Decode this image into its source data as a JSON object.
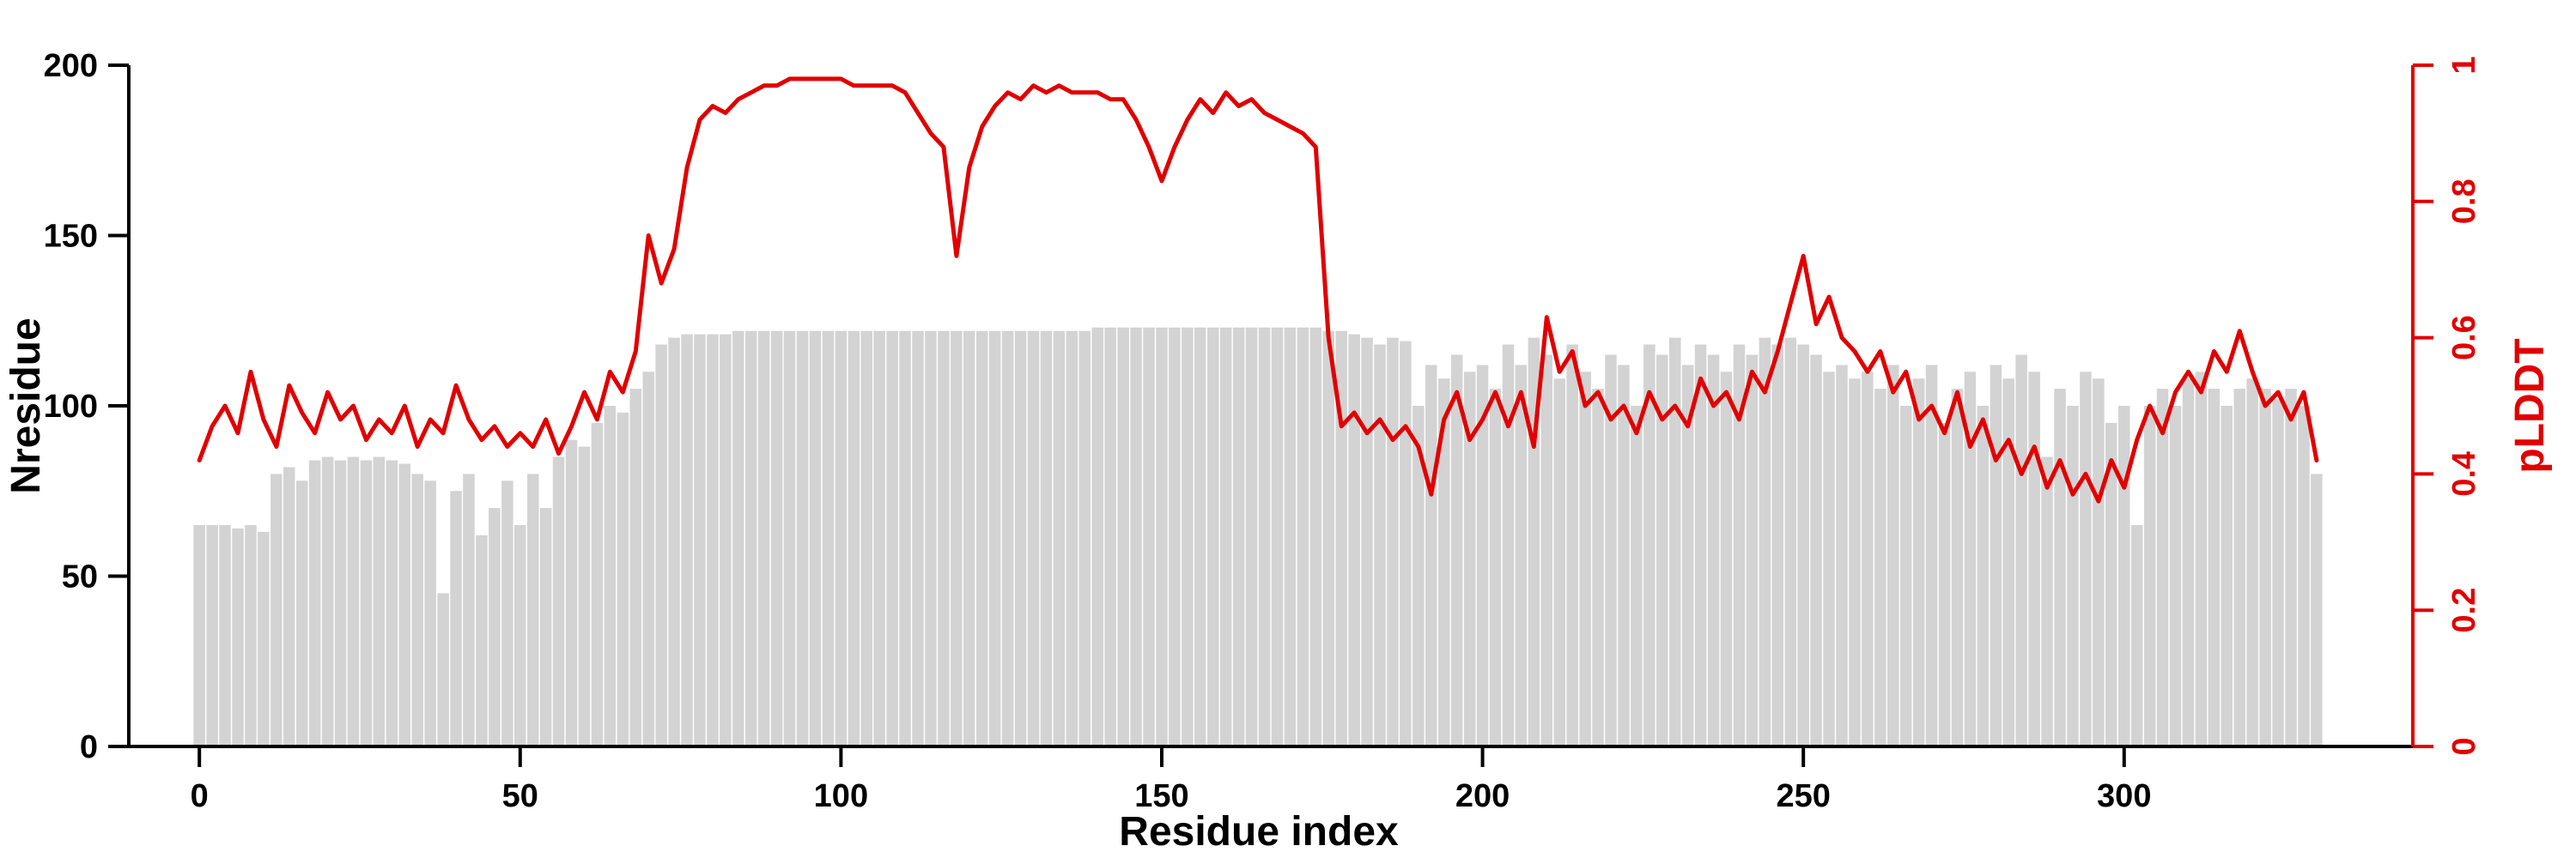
{
  "chart_data": {
    "type": "bar",
    "title": "",
    "xlabel": "Residue index",
    "ylabel_left": "Nresidue",
    "ylabel_right": "pLDDT",
    "grid": false,
    "legend": "none",
    "background": "#ffffff",
    "colors": {
      "bar_fill": "#d3d3d3",
      "line": "#e10000",
      "axis_left": "#000000",
      "axis_bottom": "#000000",
      "axis_right": "#e10000"
    },
    "xlim": [
      -11,
      345
    ],
    "ylim_left": [
      0,
      200
    ],
    "ylim_right": [
      0,
      1
    ],
    "x_tick_labels": [
      "0",
      "50",
      "100",
      "150",
      "200",
      "250",
      "300"
    ],
    "y_left_tick_labels": [
      "0",
      "50",
      "100",
      "150",
      "200"
    ],
    "y_right_tick_labels": [
      "0",
      "0.2",
      "0.4",
      "0.6",
      "0.8",
      "1"
    ],
    "x": [
      0,
      2,
      4,
      6,
      8,
      10,
      12,
      14,
      16,
      18,
      20,
      22,
      24,
      26,
      28,
      30,
      32,
      34,
      36,
      38,
      40,
      42,
      44,
      46,
      48,
      50,
      52,
      54,
      56,
      58,
      60,
      62,
      64,
      66,
      68,
      70,
      72,
      74,
      76,
      78,
      80,
      82,
      84,
      86,
      88,
      90,
      92,
      94,
      96,
      98,
      100,
      102,
      104,
      106,
      108,
      110,
      112,
      114,
      116,
      118,
      120,
      122,
      124,
      126,
      128,
      130,
      132,
      134,
      136,
      138,
      140,
      142,
      144,
      146,
      148,
      150,
      152,
      154,
      156,
      158,
      160,
      162,
      164,
      166,
      168,
      170,
      172,
      174,
      176,
      178,
      180,
      182,
      184,
      186,
      188,
      190,
      192,
      194,
      196,
      198,
      200,
      202,
      204,
      206,
      208,
      210,
      212,
      214,
      216,
      218,
      220,
      222,
      224,
      226,
      228,
      230,
      232,
      234,
      236,
      238,
      240,
      242,
      244,
      246,
      248,
      250,
      252,
      254,
      256,
      258,
      260,
      262,
      264,
      266,
      268,
      270,
      272,
      274,
      276,
      278,
      280,
      282,
      284,
      286,
      288,
      290,
      292,
      294,
      296,
      298,
      300,
      302,
      304,
      306,
      308,
      310,
      312,
      314,
      316,
      318,
      320,
      322,
      324,
      326,
      328,
      330
    ],
    "series": [
      {
        "name": "Nresidue",
        "render": "bar",
        "axis": "left",
        "color": "#d3d3d3",
        "values": [
          65,
          65,
          65,
          64,
          65,
          63,
          80,
          82,
          78,
          84,
          85,
          84,
          85,
          84,
          85,
          84,
          83,
          80,
          78,
          45,
          75,
          80,
          62,
          70,
          78,
          65,
          80,
          70,
          85,
          90,
          88,
          95,
          100,
          98,
          105,
          110,
          118,
          120,
          121,
          121,
          121,
          121,
          122,
          122,
          122,
          122,
          122,
          122,
          122,
          122,
          122,
          122,
          122,
          122,
          122,
          122,
          122,
          122,
          122,
          122,
          122,
          122,
          122,
          122,
          122,
          122,
          122,
          122,
          122,
          122,
          123,
          123,
          123,
          123,
          123,
          123,
          123,
          123,
          123,
          123,
          123,
          123,
          123,
          123,
          123,
          123,
          123,
          123,
          122,
          122,
          121,
          120,
          118,
          120,
          119,
          100,
          112,
          108,
          115,
          110,
          112,
          105,
          118,
          112,
          120,
          115,
          108,
          118,
          110,
          105,
          115,
          112,
          100,
          118,
          115,
          120,
          112,
          118,
          115,
          110,
          118,
          115,
          120,
          118,
          120,
          118,
          115,
          110,
          112,
          108,
          110,
          105,
          112,
          100,
          108,
          112,
          95,
          105,
          110,
          100,
          112,
          108,
          115,
          110,
          85,
          105,
          100,
          110,
          108,
          95,
          100,
          65,
          100,
          105,
          100,
          108,
          110,
          105,
          100,
          105,
          108,
          105,
          102,
          105,
          100,
          80
        ]
      },
      {
        "name": "pLDDT",
        "render": "line",
        "axis": "right",
        "color": "#e10000",
        "values": [
          0.42,
          0.47,
          0.5,
          0.46,
          0.55,
          0.48,
          0.44,
          0.53,
          0.49,
          0.46,
          0.52,
          0.48,
          0.5,
          0.45,
          0.48,
          0.46,
          0.5,
          0.44,
          0.48,
          0.46,
          0.53,
          0.48,
          0.45,
          0.47,
          0.44,
          0.46,
          0.44,
          0.48,
          0.43,
          0.47,
          0.52,
          0.48,
          0.55,
          0.52,
          0.58,
          0.75,
          0.68,
          0.73,
          0.85,
          0.92,
          0.94,
          0.93,
          0.95,
          0.96,
          0.97,
          0.97,
          0.98,
          0.98,
          0.98,
          0.98,
          0.98,
          0.97,
          0.97,
          0.97,
          0.97,
          0.96,
          0.93,
          0.9,
          0.88,
          0.72,
          0.85,
          0.91,
          0.94,
          0.96,
          0.95,
          0.97,
          0.96,
          0.97,
          0.96,
          0.96,
          0.96,
          0.95,
          0.95,
          0.92,
          0.88,
          0.83,
          0.88,
          0.92,
          0.95,
          0.93,
          0.96,
          0.94,
          0.95,
          0.93,
          0.92,
          0.91,
          0.9,
          0.88,
          0.6,
          0.47,
          0.49,
          0.46,
          0.48,
          0.45,
          0.47,
          0.44,
          0.37,
          0.48,
          0.52,
          0.45,
          0.48,
          0.52,
          0.47,
          0.52,
          0.44,
          0.63,
          0.55,
          0.58,
          0.5,
          0.52,
          0.48,
          0.5,
          0.46,
          0.52,
          0.48,
          0.5,
          0.47,
          0.54,
          0.5,
          0.52,
          0.48,
          0.55,
          0.52,
          0.58,
          0.65,
          0.72,
          0.62,
          0.66,
          0.6,
          0.58,
          0.55,
          0.58,
          0.52,
          0.55,
          0.48,
          0.5,
          0.46,
          0.52,
          0.44,
          0.48,
          0.42,
          0.45,
          0.4,
          0.44,
          0.38,
          0.42,
          0.37,
          0.4,
          0.36,
          0.42,
          0.38,
          0.45,
          0.5,
          0.46,
          0.52,
          0.55,
          0.52,
          0.58,
          0.55,
          0.61,
          0.55,
          0.5,
          0.52,
          0.48,
          0.52,
          0.42
        ]
      }
    ]
  }
}
